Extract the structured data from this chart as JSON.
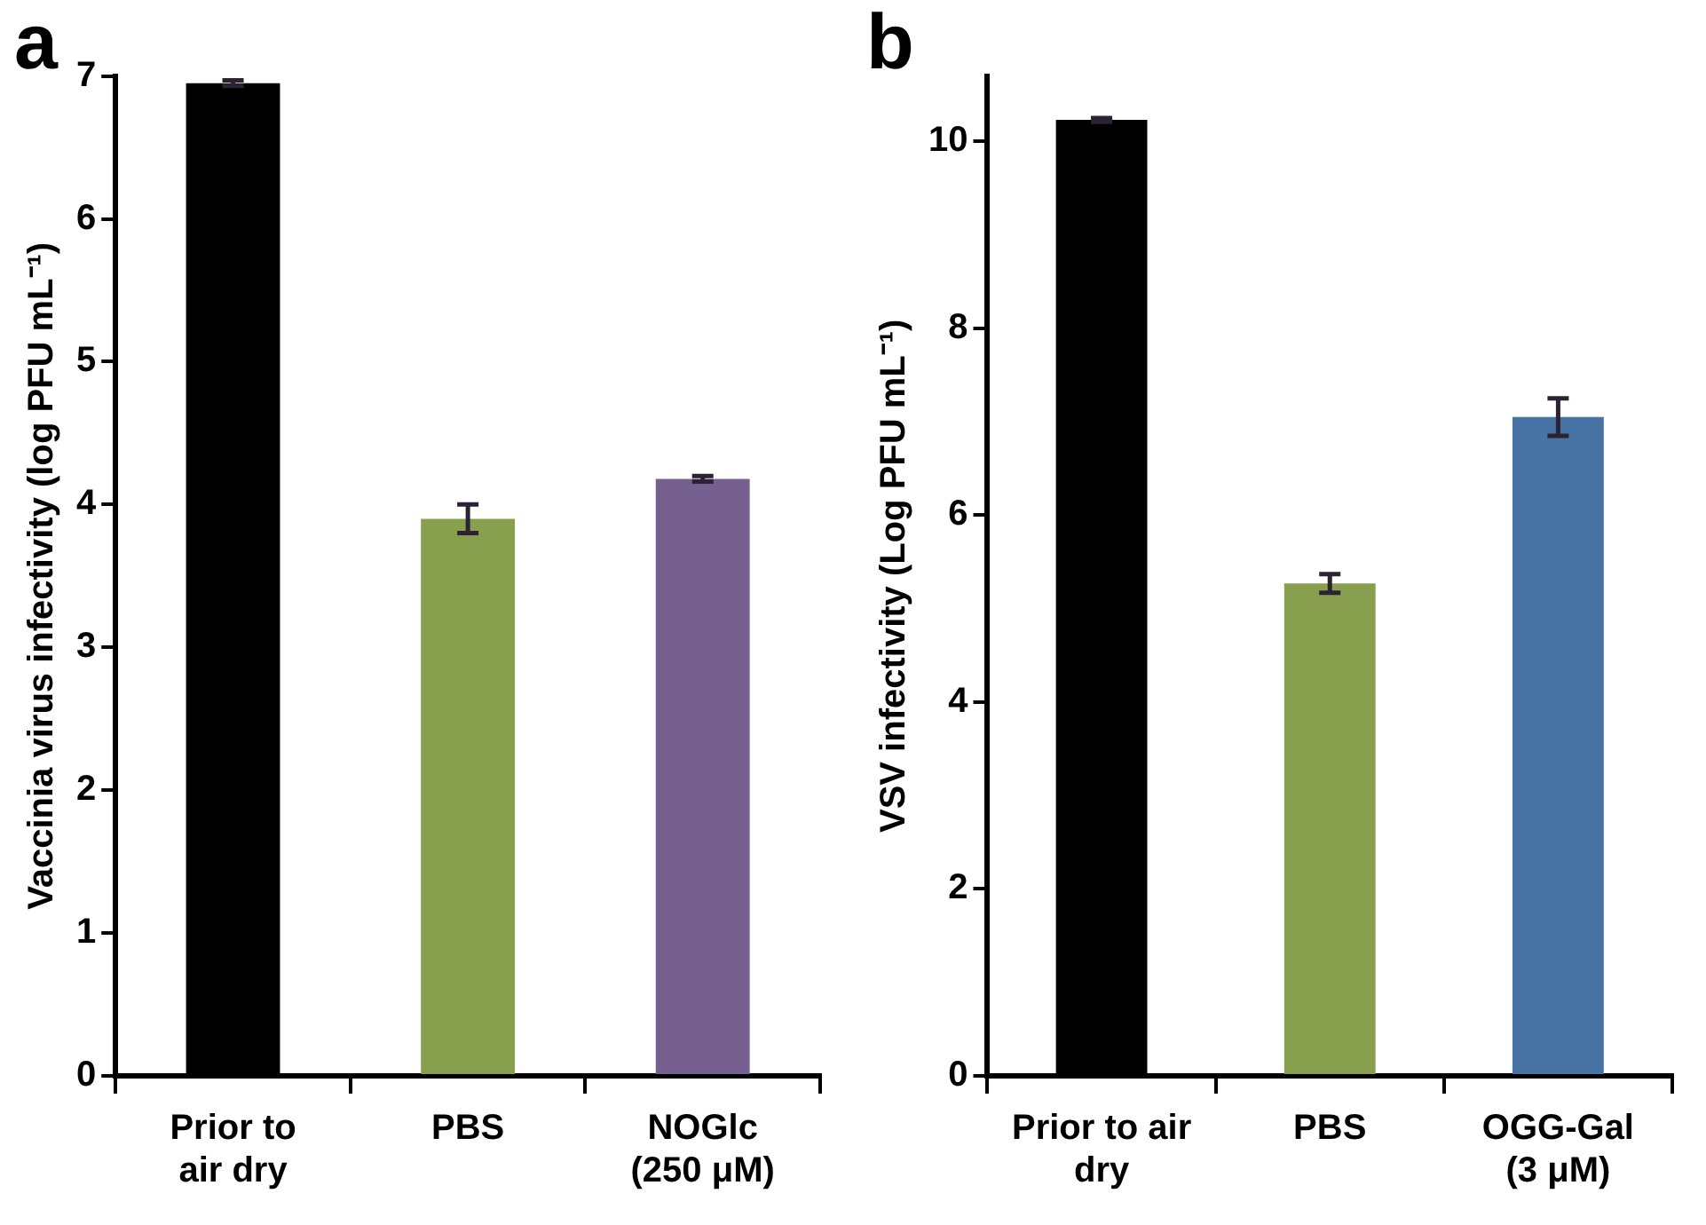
{
  "chart_data": [
    {
      "type": "bar",
      "title": "a",
      "ylabel": "Vaccinia virus infectivity (log PFU mL⁻¹)",
      "categories": [
        "Prior to\nair dry",
        "PBS",
        "NOGlc\n(250 μM)"
      ],
      "values": [
        6.95,
        3.9,
        4.18
      ],
      "colors": [
        "#000000",
        "#88a04e",
        "#76608f"
      ],
      "errors": [
        0.02,
        0.1,
        0.02
      ],
      "ylim": [
        0,
        7
      ],
      "yticks": [
        0,
        1,
        2,
        3,
        4,
        5,
        6,
        7
      ]
    },
    {
      "type": "bar",
      "title": "b",
      "ylabel": "VSV infectivity (Log PFU mL⁻¹)",
      "categories": [
        "Prior to air\ndry",
        "PBS",
        "OGG-Gal\n(3 μM)"
      ],
      "values": [
        10.23,
        5.27,
        7.05
      ],
      "colors": [
        "#000000",
        "#88a04e",
        "#4874a5"
      ],
      "errors": [
        0.02,
        0.1,
        0.2
      ],
      "ylim": [
        0,
        10.7
      ],
      "yticks": [
        0,
        2,
        4,
        6,
        8,
        10
      ]
    }
  ]
}
